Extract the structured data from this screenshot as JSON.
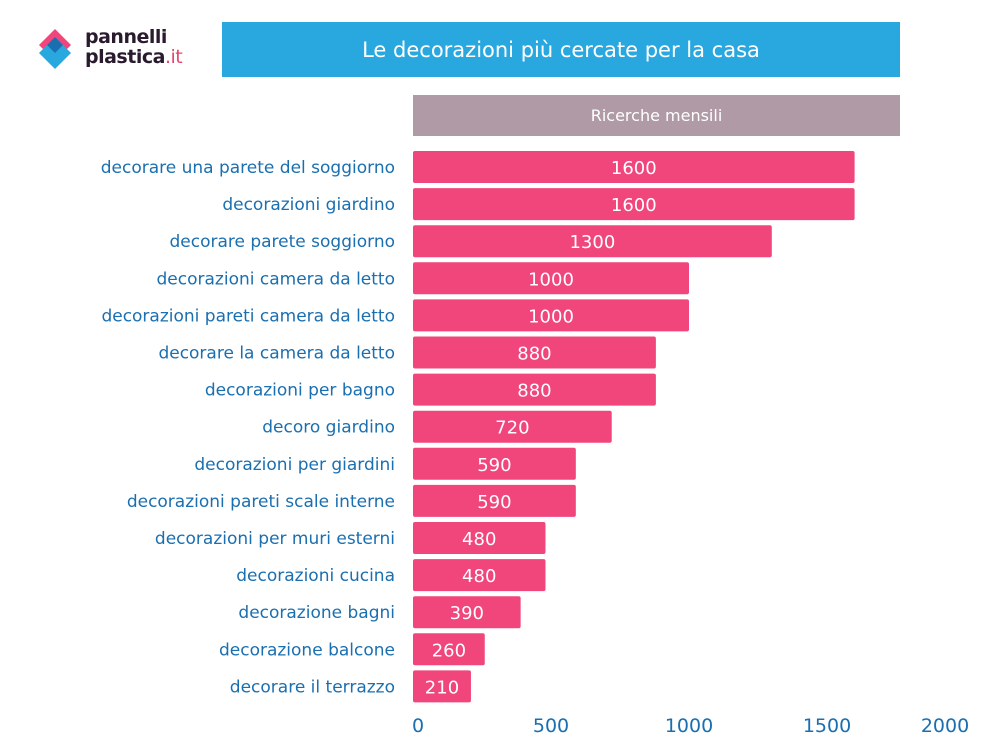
{
  "logo": {
    "line1": "pannelli",
    "line2": "plastica",
    "suffix": ".it"
  },
  "chart_data": {
    "type": "bar",
    "orientation": "horizontal",
    "title": "Le decorazioni più cercate per la casa",
    "series_header": "Ricerche mensili",
    "categories": [
      "decorare una parete del soggiorno",
      "decorazioni giardino",
      "decorare parete soggiorno",
      "decorazioni camera da letto",
      "decorazioni pareti camera da letto",
      "decorare la camera da letto",
      "decorazioni per bagno",
      "decoro giardino",
      "decorazioni per giardini",
      "decorazioni pareti scale interne",
      "decorazioni per muri esterni",
      "decorazioni cucina",
      "decorazione bagni",
      "decorazione balcone",
      "decorare il terrazzo"
    ],
    "values": [
      1600,
      1600,
      1300,
      1000,
      1000,
      880,
      880,
      720,
      590,
      590,
      480,
      480,
      390,
      260,
      210
    ],
    "xlim": [
      0,
      2000
    ],
    "xticks": [
      "0",
      "500",
      "1000",
      "1500",
      "2000"
    ],
    "grid": false,
    "colors": {
      "bar": "#f0467c",
      "label": "#1a6fb0",
      "title_bg": "#29a8e0",
      "header_bg": "#b09aa6"
    }
  }
}
